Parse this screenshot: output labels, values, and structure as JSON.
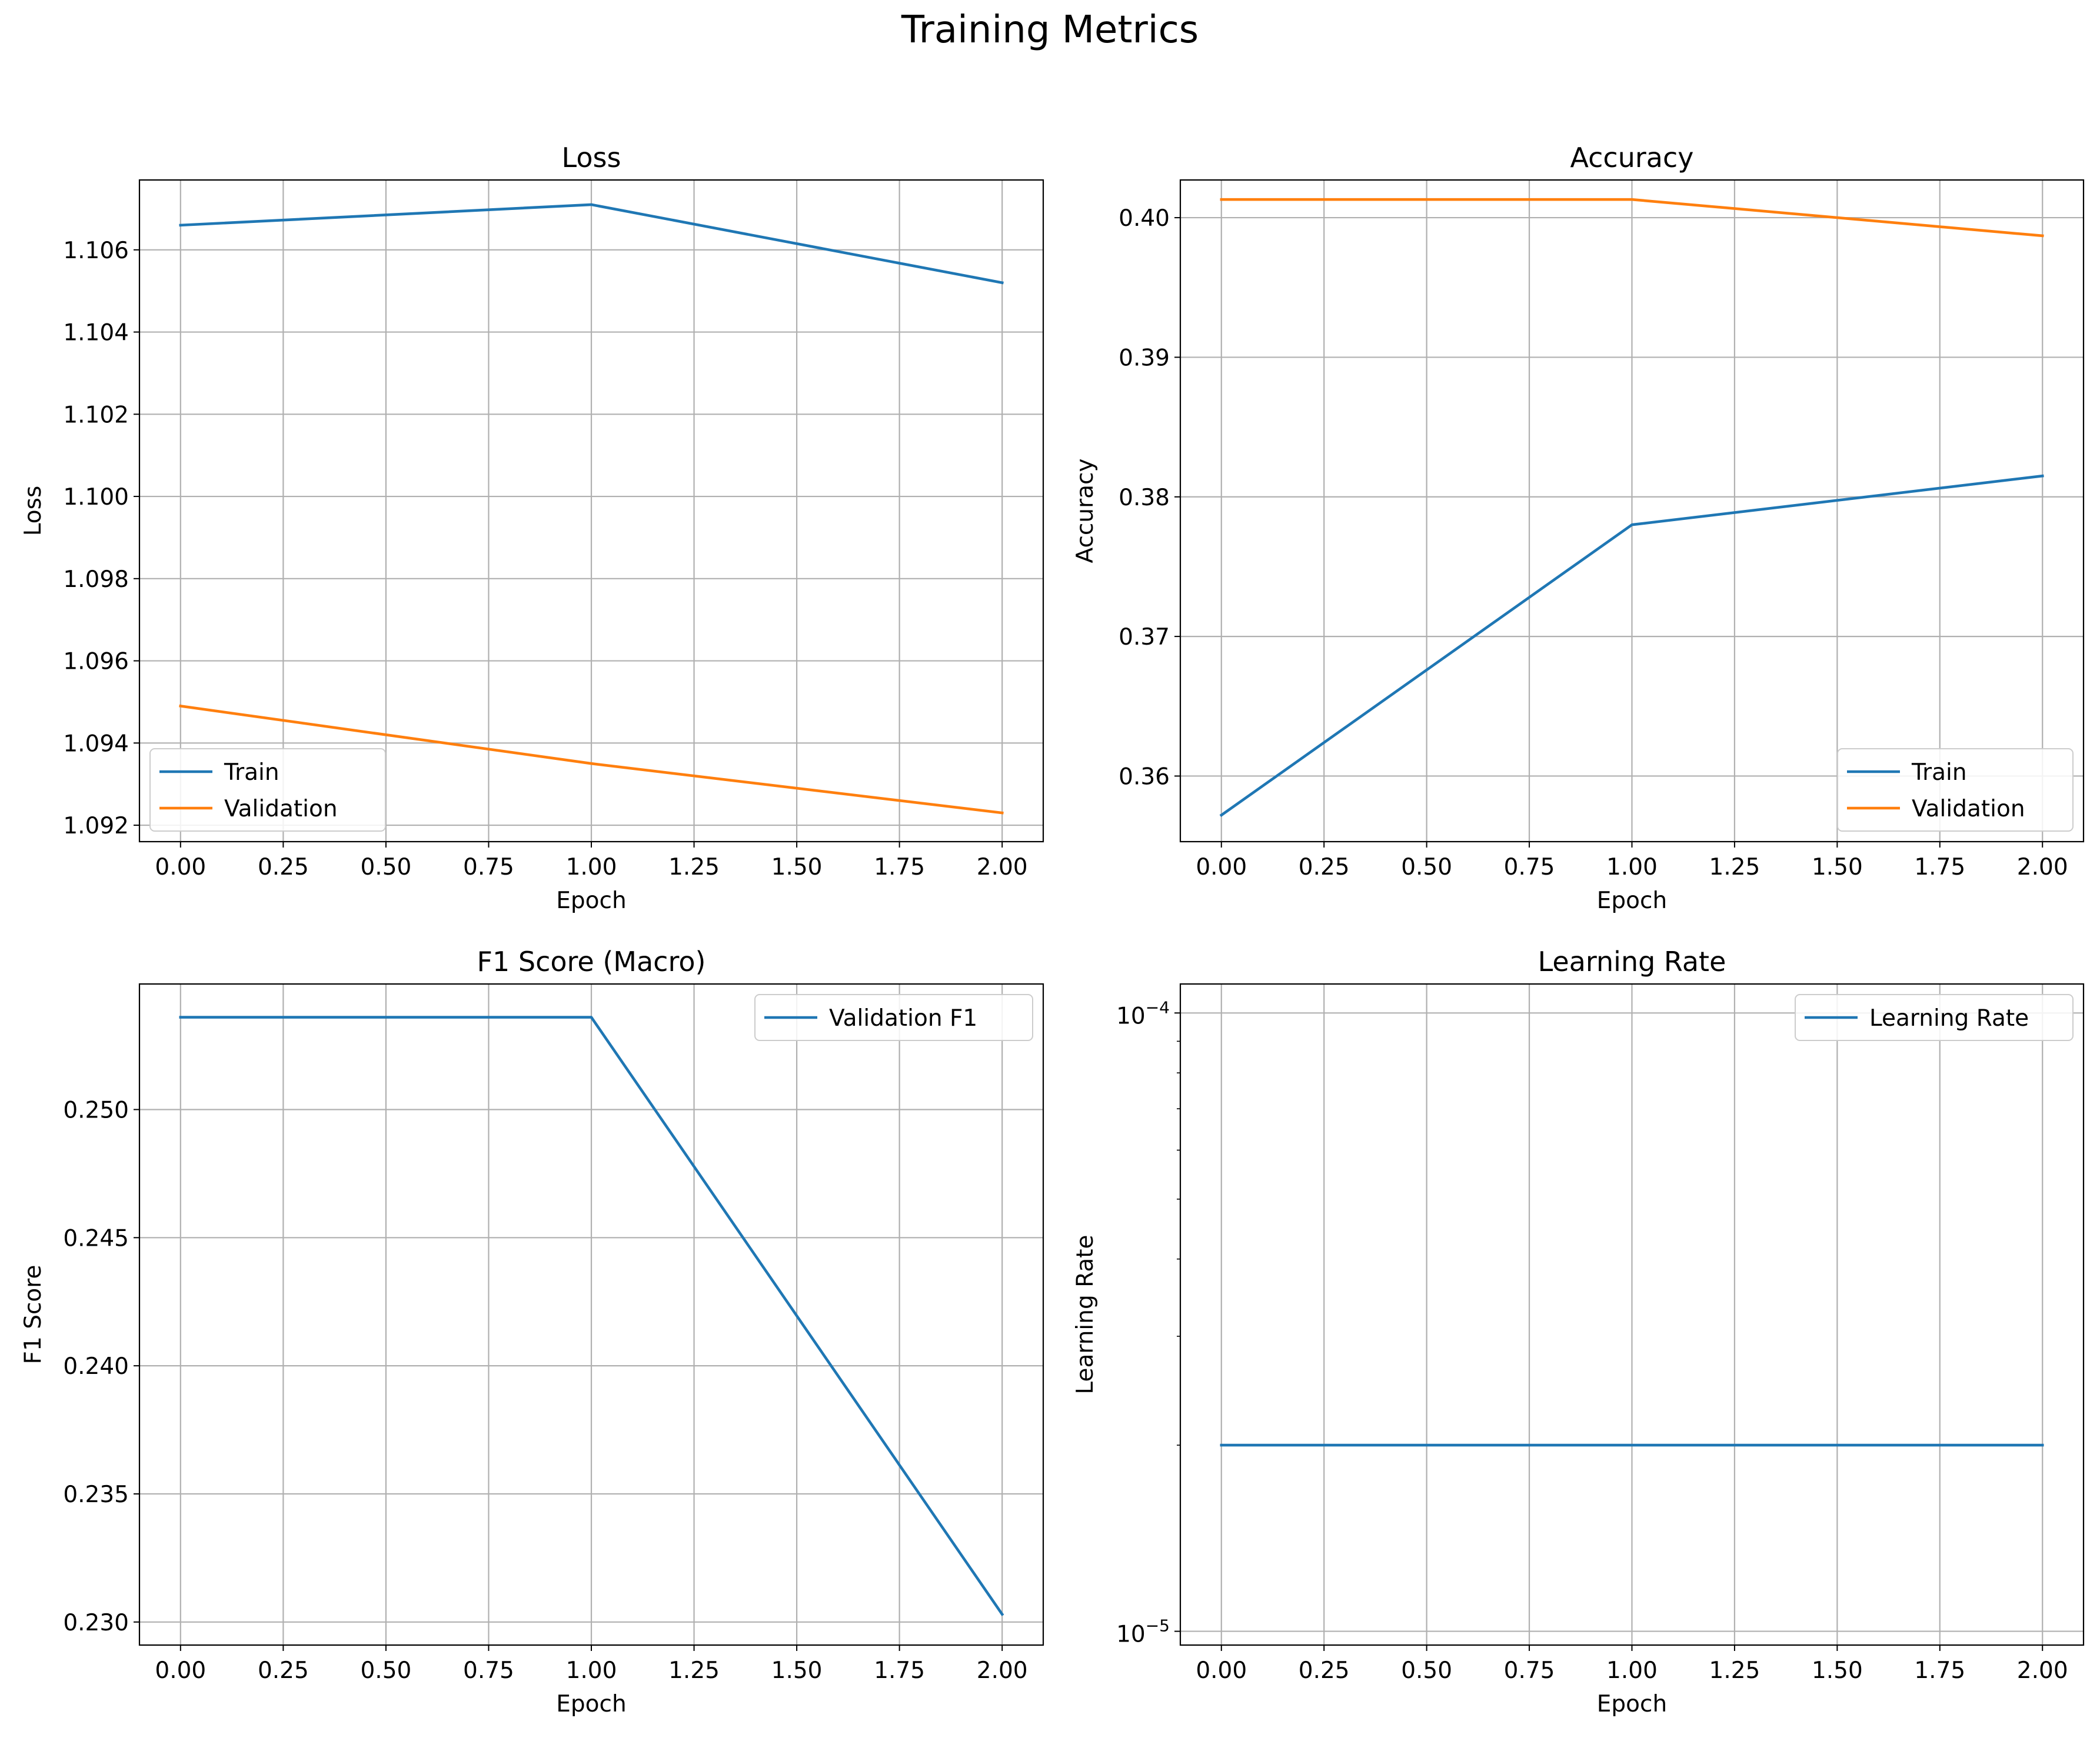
{
  "figure": {
    "title": "Training Metrics"
  },
  "colors": {
    "train": "#1f77b4",
    "validation": "#ff7f0e",
    "grid": "#b0b0b0"
  },
  "chart_data": [
    {
      "type": "line",
      "title": "Loss",
      "xlabel": "Epoch",
      "ylabel": "Loss",
      "xlim": [
        -0.1,
        2.1
      ],
      "ylim": [
        1.0916,
        1.1077
      ],
      "xticks": [
        0,
        0.25,
        0.5,
        0.75,
        1.0,
        1.25,
        1.5,
        1.75,
        2.0
      ],
      "xtick_labels": [
        "0.00",
        "0.25",
        "0.50",
        "0.75",
        "1.00",
        "1.25",
        "1.50",
        "1.75",
        "2.00"
      ],
      "yticks": [
        1.092,
        1.094,
        1.096,
        1.098,
        1.1,
        1.102,
        1.104,
        1.106
      ],
      "ytick_labels": [
        "1.092",
        "1.094",
        "1.096",
        "1.098",
        "1.100",
        "1.102",
        "1.104",
        "1.106"
      ],
      "grid": true,
      "legend": "lower-left",
      "x": [
        0,
        1,
        2
      ],
      "series": [
        {
          "name": "Train",
          "color": "#1f77b4",
          "values": [
            1.1066,
            1.1071,
            1.1052
          ]
        },
        {
          "name": "Validation",
          "color": "#ff7f0e",
          "values": [
            1.0949,
            1.0935,
            1.0923
          ]
        }
      ]
    },
    {
      "type": "line",
      "title": "Accuracy",
      "xlabel": "Epoch",
      "ylabel": "Accuracy",
      "xlim": [
        -0.1,
        2.1
      ],
      "ylim": [
        0.3553,
        0.4027
      ],
      "xticks": [
        0,
        0.25,
        0.5,
        0.75,
        1.0,
        1.25,
        1.5,
        1.75,
        2.0
      ],
      "xtick_labels": [
        "0.00",
        "0.25",
        "0.50",
        "0.75",
        "1.00",
        "1.25",
        "1.50",
        "1.75",
        "2.00"
      ],
      "yticks": [
        0.36,
        0.37,
        0.38,
        0.39,
        0.4
      ],
      "ytick_labels": [
        "0.36",
        "0.37",
        "0.38",
        "0.39",
        "0.40"
      ],
      "grid": true,
      "legend": "lower-right",
      "x": [
        0,
        1,
        2
      ],
      "series": [
        {
          "name": "Train",
          "color": "#1f77b4",
          "values": [
            0.3572,
            0.378,
            0.3815
          ]
        },
        {
          "name": "Validation",
          "color": "#ff7f0e",
          "values": [
            0.4013,
            0.4013,
            0.3987
          ]
        }
      ]
    },
    {
      "type": "line",
      "title": "F1 Score (Macro)",
      "xlabel": "Epoch",
      "ylabel": "F1 Score",
      "xlim": [
        -0.1,
        2.1
      ],
      "ylim": [
        0.2291,
        0.2549
      ],
      "xticks": [
        0,
        0.25,
        0.5,
        0.75,
        1.0,
        1.25,
        1.5,
        1.75,
        2.0
      ],
      "xtick_labels": [
        "0.00",
        "0.25",
        "0.50",
        "0.75",
        "1.00",
        "1.25",
        "1.50",
        "1.75",
        "2.00"
      ],
      "yticks": [
        0.23,
        0.235,
        0.24,
        0.245,
        0.25
      ],
      "ytick_labels": [
        "0.230",
        "0.235",
        "0.240",
        "0.245",
        "0.250"
      ],
      "grid": true,
      "legend": "upper-right",
      "x": [
        0,
        1,
        2
      ],
      "series": [
        {
          "name": "Validation F1",
          "color": "#1f77b4",
          "values": [
            0.2536,
            0.2536,
            0.2303
          ]
        }
      ]
    },
    {
      "type": "line",
      "title": "Learning Rate",
      "xlabel": "Epoch",
      "ylabel": "Learning Rate",
      "yscale": "log",
      "xlim": [
        -0.1,
        2.1
      ],
      "ylim": [
        9.5e-06,
        0.0001114
      ],
      "xticks": [
        0,
        0.25,
        0.5,
        0.75,
        1.0,
        1.25,
        1.5,
        1.75,
        2.0
      ],
      "xtick_labels": [
        "0.00",
        "0.25",
        "0.50",
        "0.75",
        "1.00",
        "1.25",
        "1.50",
        "1.75",
        "2.00"
      ],
      "yticks": [
        1e-05,
        0.0001
      ],
      "ytick_labels": [
        {
          "base": "10",
          "exp": "−5"
        },
        {
          "base": "10",
          "exp": "−4"
        }
      ],
      "minor_yticks": [
        2e-05,
        3e-05,
        4e-05,
        5e-05,
        6e-05,
        7e-05,
        8e-05,
        9e-05
      ],
      "grid": true,
      "legend": "upper-right",
      "x": [
        0,
        1,
        2
      ],
      "series": [
        {
          "name": "Learning Rate",
          "color": "#1f77b4",
          "values": [
            2e-05,
            2e-05,
            2e-05
          ]
        }
      ]
    }
  ]
}
